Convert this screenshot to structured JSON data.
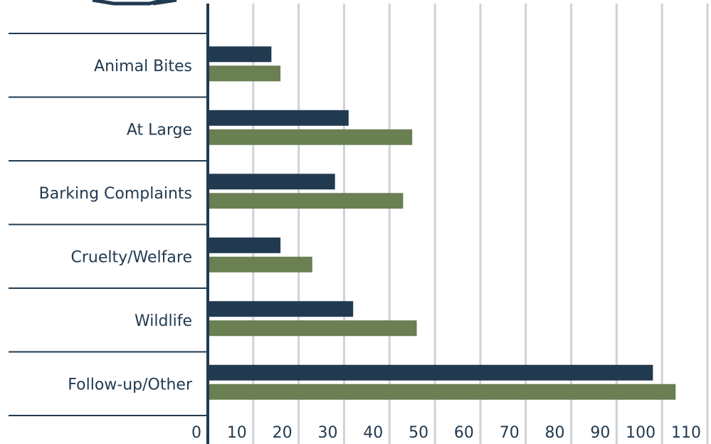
{
  "chart_data": {
    "type": "barh",
    "categories": [
      "Animal Bites",
      "At Large",
      "Barking Complaints",
      "Cruelty/Welfare",
      "Wildlife",
      "Follow-up/Other"
    ],
    "series": [
      {
        "color": "#213a50",
        "values": [
          14,
          31,
          28,
          16,
          32,
          98
        ]
      },
      {
        "color": "#6a7f52",
        "values": [
          16,
          45,
          43,
          23,
          46,
          103
        ]
      }
    ],
    "xlim": [
      0,
      110
    ],
    "xticks": [
      0,
      10,
      20,
      30,
      40,
      50,
      60,
      70,
      80,
      90,
      100,
      110
    ],
    "grid": true
  }
}
